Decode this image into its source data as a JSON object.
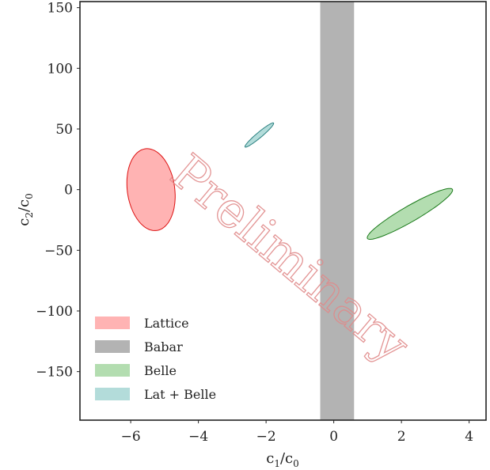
{
  "chart_data": {
    "type": "scatter",
    "title": "",
    "xlabel": "c1/c0",
    "ylabel": "c2/c0",
    "xlim": [
      -7.5,
      4.5
    ],
    "ylim": [
      -190,
      155
    ],
    "xticks": [
      -6,
      -4,
      -2,
      0,
      2,
      4
    ],
    "xtick_labels": [
      "−6",
      "−4",
      "−2",
      "0",
      "2",
      "4"
    ],
    "yticks": [
      150,
      100,
      50,
      0,
      -50,
      -100,
      -150
    ],
    "ytick_labels": [
      "150",
      "100",
      "50",
      "0",
      "−50",
      "−100",
      "−150"
    ],
    "grid": false,
    "legend_position": "lower-left",
    "series": [
      {
        "name": "Lattice",
        "shape": "ellipse",
        "center": [
          -5.4,
          0
        ],
        "semi_axes": [
          0.7,
          34
        ],
        "angle_deg": -8,
        "fill": "#ffb3b3",
        "stroke": "#dd1111"
      },
      {
        "name": "Babar",
        "shape": "band",
        "x_range": [
          -0.4,
          0.6
        ],
        "fill": "#b3b3b3",
        "stroke": "none"
      },
      {
        "name": "Belle",
        "shape": "ellipse",
        "center": [
          2.25,
          -20
        ],
        "semi_axes": [
          1.45,
          6.5
        ],
        "angle_deg": -30,
        "fill": "#b3ddb0",
        "stroke": "#1a7a1a"
      },
      {
        "name": "Lat + Belle",
        "shape": "ellipse",
        "center": [
          -2.2,
          45
        ],
        "semi_axes": [
          0.55,
          2.2
        ],
        "angle_deg": -40,
        "fill": "#b3dcda",
        "stroke": "#2a8080"
      }
    ],
    "watermark": "Preliminary",
    "colors": {
      "watermark": "#e08a8a",
      "axis": "#222222"
    }
  }
}
